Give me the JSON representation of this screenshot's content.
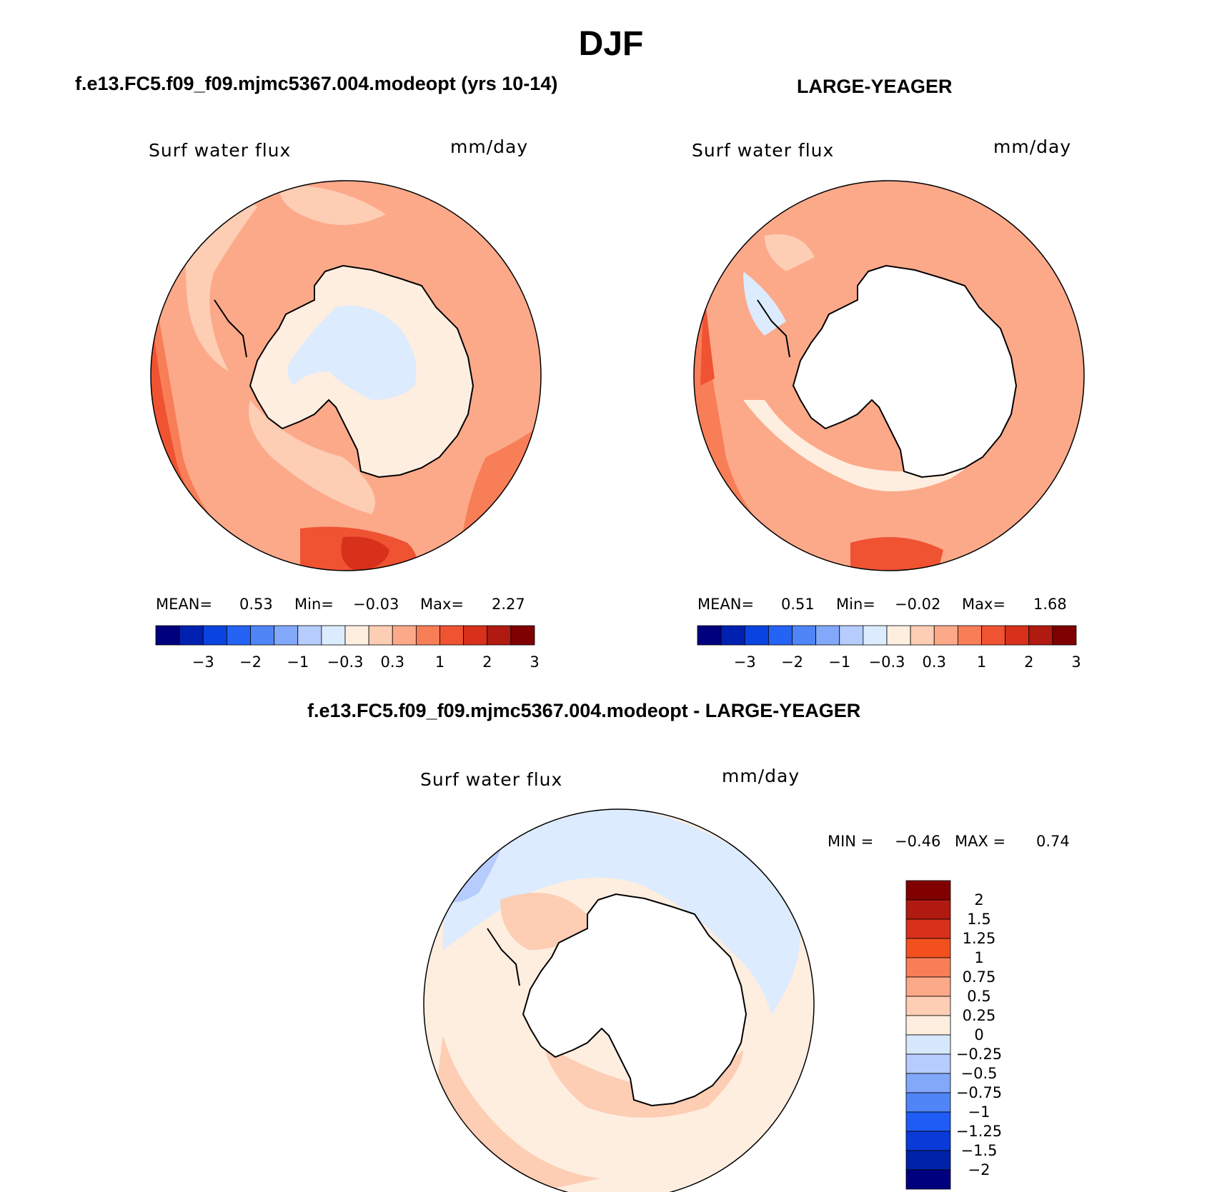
{
  "page": {
    "title": "DJF",
    "case_title": "f.e13.FC5.f09_f09.mjmc5367.004.modeopt (yrs 10-14)",
    "obs_title": "LARGE-YEAGER",
    "diff_title": "f.e13.FC5.f09_f09.mjmc5367.004.modeopt - LARGE-YEAGER"
  },
  "panels": {
    "case": {
      "variable": "Surf water flux",
      "units": "mm/day",
      "stats_mean_label": "MEAN=",
      "stats_mean": "0.53",
      "stats_min_label": "Min=",
      "stats_min": "−0.03",
      "stats_max_label": "Max=",
      "stats_max": "2.27"
    },
    "obs": {
      "variable": "Surf water flux",
      "units": "mm/day",
      "stats_mean_label": "MEAN=",
      "stats_mean": "0.51",
      "stats_min_label": "Min=",
      "stats_min": "−0.02",
      "stats_max_label": "Max=",
      "stats_max": "1.68"
    },
    "diff": {
      "variable": "Surf water flux",
      "units": "mm/day",
      "stats_min_label": "MIN =",
      "stats_min": "−0.46",
      "stats_max_label": "MAX =",
      "stats_max": "0.74"
    }
  },
  "chart_data": [
    {
      "type": "heatmap",
      "projection": "south-polar-stereographic",
      "region": "Antarctica / Southern Ocean",
      "title": "Surf water flux",
      "units": "mm/day",
      "mean": 0.53,
      "min": -0.03,
      "max": 2.27,
      "colorbar_levels": [
        "−3",
        "−2",
        "−1",
        "−0.3",
        "0.3",
        "1",
        "2",
        "3"
      ],
      "colorbar_colors": [
        "#00007f",
        "#0021b0",
        "#0a44e0",
        "#2563f5",
        "#4f85f7",
        "#82a8fa",
        "#b6ccfc",
        "#dcebfd",
        "#feeee0",
        "#fdcdb4",
        "#fca98a",
        "#f87e58",
        "#ef5332",
        "#d7301b",
        "#b01a10",
        "#7f0000"
      ]
    },
    {
      "type": "heatmap",
      "projection": "south-polar-stereographic",
      "region": "Antarctica / Southern Ocean",
      "title": "Surf water flux",
      "units": "mm/day",
      "mean": 0.51,
      "min": -0.02,
      "max": 1.68,
      "colorbar_levels": [
        "−3",
        "−2",
        "−1",
        "−0.3",
        "0.3",
        "1",
        "2",
        "3"
      ],
      "colorbar_colors": [
        "#00007f",
        "#0021b0",
        "#0a44e0",
        "#2563f5",
        "#4f85f7",
        "#82a8fa",
        "#b6ccfc",
        "#dcebfd",
        "#feeee0",
        "#fdcdb4",
        "#fca98a",
        "#f87e58",
        "#ef5332",
        "#d7301b",
        "#b01a10",
        "#7f0000"
      ]
    },
    {
      "type": "heatmap",
      "projection": "south-polar-stereographic",
      "region": "Antarctica / Southern Ocean",
      "title": "Surf water flux",
      "units": "mm/day",
      "min": -0.46,
      "max": 0.74,
      "colorbar_orientation": "vertical",
      "colorbar_levels": [
        "2",
        "1.5",
        "1.25",
        "1",
        "0.75",
        "0.5",
        "0.25",
        "0",
        "−0.25",
        "−0.5",
        "−0.75",
        "−1",
        "−1.25",
        "−1.5",
        "−2"
      ],
      "colorbar_colors": [
        "#800000",
        "#b01a10",
        "#d7301b",
        "#f2501f",
        "#f87e58",
        "#fca98a",
        "#fdcdb4",
        "#feeee0",
        "#d8e8fc",
        "#b6ccfc",
        "#82a8fa",
        "#4f85f7",
        "#1f5cf5",
        "#0a3ad8",
        "#0022a8",
        "#00007f"
      ]
    }
  ]
}
